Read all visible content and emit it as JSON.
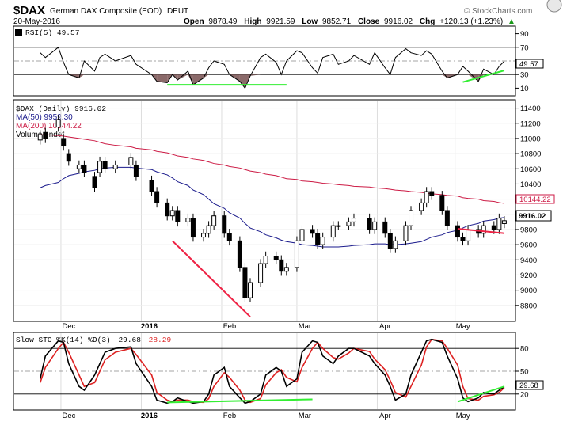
{
  "header": {
    "symbol": "$DAX",
    "name": "German DAX Composite (EOD)",
    "exchange": "DEUT",
    "date": "20-May-2016",
    "watermark": "© StockCharts.com",
    "open_label": "Open",
    "open": "9878.49",
    "high_label": "High",
    "high": "9921.59",
    "low_label": "Low",
    "low": "9852.71",
    "close_label": "Close",
    "close": "9916.02",
    "chg_label": "Chg",
    "chg": "+120.13 (+1.23%)",
    "chg_symbol": "▲"
  },
  "rsi_panel": {
    "legend": "RSI(5) 49.57",
    "badge": "49.57",
    "ticks": [
      "90",
      "70",
      "50",
      "30",
      "10"
    ],
    "colors": {
      "line": "#000000",
      "overbought_fill": "#4f7a4f",
      "oversold_fill": "#8b6a6a",
      "trend": "#33ee33"
    }
  },
  "price_panel": {
    "legend_main": "$DAX (Daily) 9916.02",
    "legend_ma50": "MA(50) 9959.30",
    "legend_ma200": "MA(200) 10144.22",
    "legend_volume": "Volume undef",
    "badge_ma200": "10144.22",
    "badge_close": "9916.02",
    "ticks": [
      "11400",
      "11200",
      "11000",
      "10800",
      "10600",
      "10400",
      "10200",
      "10000",
      "9800",
      "9600",
      "9400",
      "9200",
      "9000",
      "8800"
    ],
    "colors": {
      "ma50": "#1a1a8c",
      "ma200": "#cc1a44",
      "trend": "#ee2244",
      "up": "#ffffff",
      "down": "#000000"
    }
  },
  "sto_panel": {
    "legend_prefix": "Slow STO %K(14) %D(3)",
    "k_value": "29.68",
    "d_value": "28.29",
    "badge": "29.68",
    "ticks": [
      "80",
      "50",
      "20"
    ],
    "colors": {
      "k": "#000000",
      "d": "#dd2222",
      "trend": "#33ee33"
    }
  },
  "x_axis": {
    "labels": [
      "Dec",
      "2016",
      "Feb",
      "Mar",
      "Apr",
      "May"
    ]
  },
  "chart_data": [
    {
      "type": "line",
      "title": "RSI(5) 49.57",
      "ylim": [
        0,
        100
      ],
      "ticks": [
        90,
        70,
        50,
        30,
        10
      ],
      "x_dates": [
        "2015-11-23",
        "2015-11-25",
        "2015-11-30",
        "2015-12-02",
        "2015-12-04",
        "2015-12-08",
        "2015-12-10",
        "2015-12-14",
        "2015-12-16",
        "2015-12-18",
        "2015-12-22",
        "2015-12-28",
        "2015-12-30",
        "2016-01-05",
        "2016-01-07",
        "2016-01-11",
        "2016-01-13",
        "2016-01-15",
        "2016-01-19",
        "2016-01-21",
        "2016-01-25",
        "2016-01-27",
        "2016-01-29",
        "2016-02-02",
        "2016-02-04",
        "2016-02-08",
        "2016-02-10",
        "2016-02-12",
        "2016-02-16",
        "2016-02-18",
        "2016-02-22",
        "2016-02-24",
        "2016-02-26",
        "2016-03-01",
        "2016-03-03",
        "2016-03-07",
        "2016-03-09",
        "2016-03-11",
        "2016-03-15",
        "2016-03-17",
        "2016-03-21",
        "2016-03-23",
        "2016-03-29",
        "2016-03-31",
        "2016-04-04",
        "2016-04-06",
        "2016-04-08",
        "2016-04-12",
        "2016-04-14",
        "2016-04-18",
        "2016-04-20",
        "2016-04-22",
        "2016-04-26",
        "2016-04-28",
        "2016-05-02",
        "2016-05-04",
        "2016-05-06",
        "2016-05-10",
        "2016-05-12",
        "2016-05-16",
        "2016-05-18",
        "2016-05-20"
      ],
      "values": [
        62,
        55,
        70,
        48,
        30,
        25,
        50,
        35,
        55,
        60,
        50,
        58,
        45,
        30,
        20,
        18,
        30,
        22,
        35,
        15,
        25,
        40,
        50,
        45,
        30,
        20,
        10,
        28,
        55,
        60,
        48,
        30,
        50,
        65,
        62,
        40,
        32,
        55,
        60,
        45,
        50,
        58,
        45,
        62,
        40,
        30,
        55,
        68,
        62,
        58,
        65,
        60,
        35,
        25,
        30,
        42,
        35,
        20,
        38,
        30,
        42,
        49.57
      ],
      "trendlines": [
        {
          "from": [
            "2016-01-11",
            15
          ],
          "to": [
            "2016-02-26",
            15
          ]
        },
        {
          "from": [
            "2016-05-04",
            19
          ],
          "to": [
            "2016-05-20",
            36
          ]
        }
      ]
    },
    {
      "type": "candlestick",
      "title": "$DAX (Daily) 9916.02",
      "ylabel": "",
      "ylim": [
        8600,
        11500
      ],
      "ticks": [
        11400,
        11200,
        11000,
        10800,
        10600,
        10400,
        10200,
        10000,
        9800,
        9600,
        9400,
        9200,
        9000,
        8800
      ],
      "x_dates": [
        "2015-11-23",
        "2015-11-25",
        "2015-11-30",
        "2015-12-02",
        "2015-12-04",
        "2015-12-08",
        "2015-12-10",
        "2015-12-14",
        "2015-12-16",
        "2015-12-18",
        "2015-12-22",
        "2015-12-28",
        "2015-12-30",
        "2016-01-05",
        "2016-01-07",
        "2016-01-11",
        "2016-01-13",
        "2016-01-15",
        "2016-01-19",
        "2016-01-21",
        "2016-01-25",
        "2016-01-27",
        "2016-01-29",
        "2016-02-02",
        "2016-02-04",
        "2016-02-08",
        "2016-02-10",
        "2016-02-12",
        "2016-02-16",
        "2016-02-18",
        "2016-02-22",
        "2016-02-24",
        "2016-02-26",
        "2016-03-01",
        "2016-03-03",
        "2016-03-07",
        "2016-03-09",
        "2016-03-11",
        "2016-03-15",
        "2016-03-17",
        "2016-03-21",
        "2016-03-23",
        "2016-03-29",
        "2016-03-31",
        "2016-04-04",
        "2016-04-06",
        "2016-04-08",
        "2016-04-12",
        "2016-04-14",
        "2016-04-18",
        "2016-04-20",
        "2016-04-22",
        "2016-04-26",
        "2016-04-28",
        "2016-05-02",
        "2016-05-04",
        "2016-05-06",
        "2016-05-10",
        "2016-05-12",
        "2016-05-16",
        "2016-05-18",
        "2016-05-20"
      ],
      "close": [
        11050,
        11000,
        11250,
        10900,
        10700,
        10650,
        10550,
        10350,
        10700,
        10600,
        10650,
        10750,
        10500,
        10300,
        10150,
        9980,
        10050,
        9900,
        9950,
        9700,
        9750,
        9850,
        9980,
        9750,
        9650,
        9300,
        8900,
        9100,
        9350,
        9450,
        9400,
        9250,
        9300,
        9650,
        9800,
        9750,
        9600,
        9700,
        9850,
        9850,
        9900,
        9950,
        9800,
        9900,
        9750,
        9550,
        9650,
        9850,
        10050,
        10150,
        10300,
        10250,
        10050,
        9850,
        9700,
        9650,
        9800,
        9750,
        9850,
        9800,
        9950,
        9916.02
      ],
      "open": [
        10980,
        11080,
        11150,
        11000,
        10800,
        10600,
        10650,
        10500,
        10550,
        10700,
        10600,
        10650,
        10650,
        10450,
        10300,
        10150,
        9980,
        10050,
        9900,
        9950,
        9700,
        9750,
        9850,
        9980,
        9750,
        9650,
        9300,
        8900,
        9100,
        9350,
        9450,
        9400,
        9250,
        9300,
        9650,
        9800,
        9750,
        9600,
        9700,
        9850,
        9850,
        9900,
        9950,
        9800,
        9900,
        9750,
        9550,
        9650,
        9850,
        10050,
        10150,
        10300,
        10250,
        10050,
        9850,
        9700,
        9650,
        9800,
        9750,
        9850,
        9800,
        9878.49
      ],
      "ma50": [
        10350,
        10380,
        10420,
        10470,
        10510,
        10540,
        10560,
        10580,
        10600,
        10610,
        10620,
        10620,
        10610,
        10590,
        10560,
        10520,
        10480,
        10430,
        10380,
        10320,
        10260,
        10200,
        10140,
        10080,
        10020,
        9950,
        9880,
        9820,
        9770,
        9730,
        9690,
        9660,
        9640,
        9620,
        9600,
        9590,
        9580,
        9570,
        9570,
        9570,
        9580,
        9590,
        9600,
        9610,
        9610,
        9600,
        9600,
        9610,
        9620,
        9640,
        9670,
        9700,
        9730,
        9760,
        9790,
        9820,
        9850,
        9880,
        9910,
        9930,
        9950,
        9959.3
      ],
      "ma200": [
        11050,
        11050,
        11040,
        11030,
        11020,
        11000,
        10990,
        10970,
        10950,
        10930,
        10910,
        10890,
        10870,
        10850,
        10830,
        10810,
        10790,
        10770,
        10750,
        10730,
        10710,
        10690,
        10670,
        10650,
        10630,
        10610,
        10590,
        10570,
        10550,
        10530,
        10510,
        10490,
        10470,
        10460,
        10440,
        10430,
        10420,
        10410,
        10400,
        10390,
        10380,
        10370,
        10360,
        10350,
        10340,
        10330,
        10320,
        10310,
        10300,
        10290,
        10280,
        10270,
        10260,
        10250,
        10240,
        10220,
        10210,
        10200,
        10180,
        10170,
        10155,
        10144.22
      ],
      "trendlines": [
        {
          "from": [
            "2016-01-13",
            9650
          ],
          "to": [
            "2016-02-12",
            8650
          ]
        },
        {
          "from": [
            "2016-05-02",
            9810
          ],
          "to": [
            "2016-05-20",
            9750
          ]
        }
      ]
    },
    {
      "type": "line",
      "title": "Slow STO %K(14) %D(3) 29.68, 28.29",
      "ylim": [
        0,
        100
      ],
      "ticks": [
        80,
        50,
        20
      ],
      "x_dates": [
        "2015-11-23",
        "2015-11-25",
        "2015-11-30",
        "2015-12-02",
        "2015-12-04",
        "2015-12-08",
        "2015-12-10",
        "2015-12-14",
        "2015-12-16",
        "2015-12-18",
        "2015-12-22",
        "2015-12-28",
        "2015-12-30",
        "2016-01-05",
        "2016-01-07",
        "2016-01-11",
        "2016-01-13",
        "2016-01-15",
        "2016-01-19",
        "2016-01-21",
        "2016-01-25",
        "2016-01-27",
        "2016-01-29",
        "2016-02-02",
        "2016-02-04",
        "2016-02-08",
        "2016-02-10",
        "2016-02-12",
        "2016-02-16",
        "2016-02-18",
        "2016-02-22",
        "2016-02-24",
        "2016-02-26",
        "2016-03-01",
        "2016-03-03",
        "2016-03-07",
        "2016-03-09",
        "2016-03-11",
        "2016-03-15",
        "2016-03-17",
        "2016-03-21",
        "2016-03-23",
        "2016-03-29",
        "2016-03-31",
        "2016-04-04",
        "2016-04-06",
        "2016-04-08",
        "2016-04-12",
        "2016-04-14",
        "2016-04-18",
        "2016-04-20",
        "2016-04-22",
        "2016-04-26",
        "2016-04-28",
        "2016-05-02",
        "2016-05-04",
        "2016-05-06",
        "2016-05-10",
        "2016-05-12",
        "2016-05-16",
        "2016-05-18",
        "2016-05-20"
      ],
      "series": [
        {
          "name": "%K(14)",
          "values": [
            40,
            70,
            90,
            88,
            60,
            30,
            25,
            45,
            60,
            75,
            80,
            82,
            60,
            30,
            12,
            8,
            10,
            15,
            10,
            8,
            10,
            20,
            45,
            55,
            30,
            15,
            8,
            10,
            20,
            45,
            55,
            50,
            30,
            40,
            75,
            90,
            88,
            70,
            60,
            70,
            80,
            80,
            70,
            60,
            45,
            30,
            12,
            20,
            45,
            75,
            90,
            92,
            88,
            70,
            40,
            15,
            10,
            15,
            22,
            20,
            25,
            29.68
          ]
        },
        {
          "name": "%D(3)",
          "values": [
            35,
            55,
            80,
            88,
            75,
            45,
            30,
            35,
            50,
            65,
            75,
            80,
            72,
            45,
            22,
            12,
            10,
            12,
            12,
            10,
            9,
            14,
            30,
            48,
            42,
            25,
            12,
            9,
            14,
            32,
            48,
            52,
            42,
            36,
            55,
            80,
            88,
            80,
            68,
            66,
            74,
            80,
            76,
            66,
            52,
            38,
            22,
            16,
            30,
            58,
            82,
            92,
            90,
            80,
            58,
            30,
            14,
            12,
            17,
            19,
            22,
            28.29
          ]
        }
      ],
      "trendlines": [
        {
          "from": [
            "2016-01-11",
            9
          ],
          "to": [
            "2016-03-07",
            13
          ]
        },
        {
          "from": [
            "2016-05-02",
            10
          ],
          "to": [
            "2016-05-20",
            30
          ]
        }
      ]
    }
  ]
}
